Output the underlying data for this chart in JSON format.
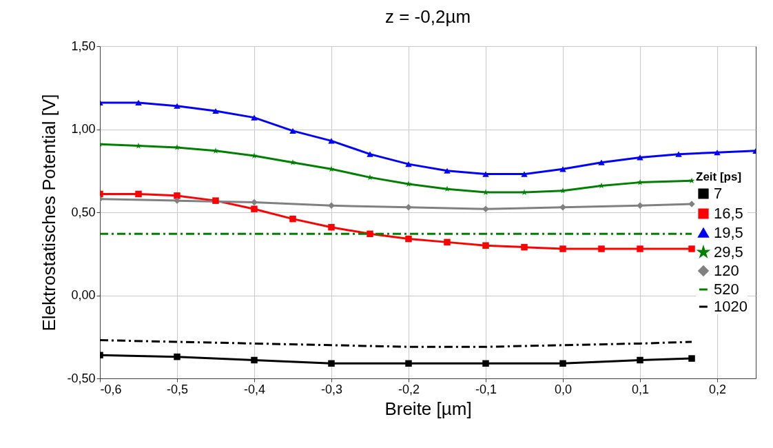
{
  "chart_data": {
    "type": "line",
    "title": "z = -0,2µm",
    "xlabel": "Breite [µm]",
    "ylabel": "Elektrostatisches Potential [V]",
    "legend_title": "Zeit [ps]",
    "legend": "right",
    "grid": true,
    "xlim": [
      -0.6,
      0.25
    ],
    "xticks": [
      {
        "value": -0.6,
        "label": "-0,6"
      },
      {
        "value": -0.5,
        "label": "-0,5"
      },
      {
        "value": -0.4,
        "label": "-0,4"
      },
      {
        "value": -0.3,
        "label": "-0,3"
      },
      {
        "value": -0.2,
        "label": "-0,2"
      },
      {
        "value": -0.1,
        "label": "-0,1"
      },
      {
        "value": 0,
        "label": "0,0"
      },
      {
        "value": 0.1,
        "label": "0,1"
      },
      {
        "value": 0.2,
        "label": "0,2"
      }
    ],
    "ylim": [
      -0.5,
      1.5
    ],
    "yticks": [
      {
        "value": -0.5,
        "label": "-0,50"
      },
      {
        "value": 0,
        "label": "0,00"
      },
      {
        "value": 0.5,
        "label": "0,50"
      },
      {
        "value": 1,
        "label": "1,00"
      },
      {
        "value": 1.5,
        "label": "1,50"
      }
    ],
    "series": [
      {
        "name": "7",
        "color": "#000000",
        "marker": "square",
        "line_style": "solid",
        "x": [
          -0.6,
          -0.5,
          -0.4,
          -0.3,
          -0.2,
          -0.1,
          0,
          0.1,
          0.167
        ],
        "values": [
          -0.36,
          -0.37,
          -0.39,
          -0.41,
          -0.41,
          -0.41,
          -0.41,
          -0.39,
          -0.38
        ]
      },
      {
        "name": "16,5",
        "color": "#ff0000",
        "marker": "square",
        "line_style": "solid",
        "x": [
          -0.6,
          -0.55,
          -0.5,
          -0.45,
          -0.4,
          -0.35,
          -0.3,
          -0.25,
          -0.2,
          -0.15,
          -0.1,
          -0.05,
          0,
          0.05,
          0.1,
          0.167
        ],
        "values": [
          0.61,
          0.61,
          0.6,
          0.57,
          0.52,
          0.46,
          0.41,
          0.37,
          0.34,
          0.32,
          0.3,
          0.29,
          0.28,
          0.28,
          0.28,
          0.28
        ]
      },
      {
        "name": "19,5",
        "color": "#0000ff",
        "marker": "triangle",
        "line_style": "solid",
        "x": [
          -0.6,
          -0.55,
          -0.5,
          -0.45,
          -0.4,
          -0.35,
          -0.3,
          -0.25,
          -0.2,
          -0.15,
          -0.1,
          -0.05,
          0,
          0.05,
          0.1,
          0.15,
          0.2,
          0.25
        ],
        "values": [
          1.16,
          1.16,
          1.14,
          1.11,
          1.07,
          0.99,
          0.93,
          0.85,
          0.79,
          0.75,
          0.73,
          0.73,
          0.76,
          0.8,
          0.83,
          0.85,
          0.86,
          0.87
        ]
      },
      {
        "name": "29,5",
        "color": "#008000",
        "marker": "star",
        "line_style": "solid",
        "x": [
          -0.6,
          -0.55,
          -0.5,
          -0.45,
          -0.4,
          -0.35,
          -0.3,
          -0.25,
          -0.2,
          -0.15,
          -0.1,
          -0.05,
          0,
          0.05,
          0.1,
          0.167
        ],
        "values": [
          0.91,
          0.9,
          0.89,
          0.87,
          0.84,
          0.8,
          0.76,
          0.71,
          0.67,
          0.64,
          0.62,
          0.62,
          0.63,
          0.66,
          0.68,
          0.69
        ]
      },
      {
        "name": "120",
        "color": "#808080",
        "marker": "diamond",
        "line_style": "solid",
        "x": [
          -0.6,
          -0.5,
          -0.4,
          -0.3,
          -0.2,
          -0.1,
          0,
          0.1,
          0.167
        ],
        "values": [
          0.58,
          0.57,
          0.56,
          0.54,
          0.53,
          0.52,
          0.53,
          0.54,
          0.55
        ]
      },
      {
        "name": "520",
        "color": "#008000",
        "marker": "none",
        "line_style": "dashed",
        "x": [
          -0.6,
          -0.2,
          0.167
        ],
        "values": [
          0.37,
          0.37,
          0.37
        ]
      },
      {
        "name": "1020",
        "color": "#000000",
        "marker": "none",
        "line_style": "dashed",
        "x": [
          -0.6,
          -0.5,
          -0.4,
          -0.3,
          -0.2,
          -0.1,
          0,
          0.1,
          0.167
        ],
        "values": [
          -0.27,
          -0.28,
          -0.29,
          -0.3,
          -0.31,
          -0.31,
          -0.3,
          -0.29,
          -0.28
        ]
      }
    ]
  }
}
